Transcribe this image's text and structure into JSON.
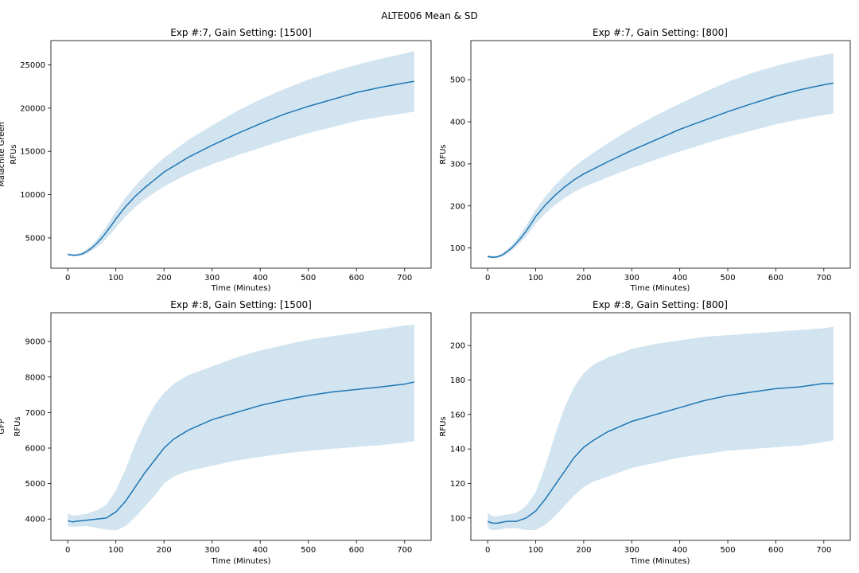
{
  "figure": {
    "suptitle": "ALTE006 Mean & SD",
    "colors": {
      "line": "#1f77b4",
      "band": "#1f77b4",
      "band_opacity": 0.2
    }
  },
  "chart_data": [
    {
      "type": "line",
      "title": "Exp #:7, Gain Setting: [1500]",
      "xlabel": "Time (Minutes)",
      "ylabel": "RFUs",
      "row_label": "Malachite Green",
      "xlim": [
        -35,
        755
      ],
      "ylim": [
        1500,
        27800
      ],
      "xticks": [
        0,
        100,
        200,
        300,
        400,
        500,
        600,
        700
      ],
      "yticks": [
        5000,
        10000,
        15000,
        20000,
        25000
      ],
      "series": [
        {
          "x": [
            0,
            10,
            20,
            30,
            40,
            50,
            60,
            70,
            80,
            90,
            100,
            120,
            140,
            160,
            180,
            200,
            250,
            300,
            350,
            400,
            450,
            500,
            550,
            600,
            650,
            700,
            720
          ],
          "mean": [
            3100,
            3000,
            3020,
            3150,
            3450,
            3850,
            4350,
            4950,
            5650,
            6400,
            7200,
            8600,
            9800,
            10800,
            11700,
            12600,
            14300,
            15700,
            17000,
            18200,
            19300,
            20200,
            21000,
            21800,
            22400,
            22900,
            23100
          ],
          "upper": [
            3250,
            3150,
            3180,
            3350,
            3700,
            4200,
            4800,
            5500,
            6300,
            7150,
            8050,
            9650,
            11000,
            12200,
            13250,
            14250,
            16300,
            18000,
            19600,
            21000,
            22200,
            23300,
            24200,
            25000,
            25700,
            26300,
            26600
          ],
          "lower": [
            2950,
            2870,
            2880,
            2970,
            3200,
            3500,
            3900,
            4350,
            4900,
            5500,
            6200,
            7450,
            8550,
            9450,
            10200,
            10950,
            12400,
            13500,
            14500,
            15400,
            16300,
            17100,
            17800,
            18500,
            19000,
            19400,
            19600
          ]
        }
      ]
    },
    {
      "type": "line",
      "title": "Exp #:7, Gain Setting: [800]",
      "xlabel": "Time (Minutes)",
      "ylabel": "RFUs",
      "xlim": [
        -35,
        755
      ],
      "ylim": [
        52,
        593
      ],
      "xticks": [
        0,
        100,
        200,
        300,
        400,
        500,
        600,
        700
      ],
      "yticks": [
        100,
        200,
        300,
        400,
        500
      ],
      "series": [
        {
          "x": [
            0,
            10,
            20,
            30,
            40,
            50,
            60,
            70,
            80,
            90,
            100,
            120,
            140,
            160,
            180,
            200,
            250,
            300,
            350,
            400,
            450,
            500,
            550,
            600,
            650,
            700,
            720
          ],
          "mean": [
            80,
            78,
            79,
            83,
            91,
            100,
            112,
            125,
            140,
            157,
            175,
            202,
            225,
            245,
            262,
            276,
            305,
            332,
            357,
            382,
            403,
            424,
            443,
            461,
            476,
            488,
            492
          ],
          "upper": [
            83,
            81,
            82,
            87,
            96,
            107,
            121,
            136,
            153,
            172,
            191,
            222,
            249,
            272,
            293,
            311,
            349,
            384,
            415,
            443,
            470,
            495,
            516,
            533,
            547,
            559,
            563
          ],
          "lower": [
            77,
            75,
            76,
            79,
            86,
            94,
            104,
            115,
            128,
            142,
            158,
            182,
            202,
            219,
            233,
            245,
            268,
            290,
            310,
            329,
            347,
            364,
            379,
            394,
            406,
            416,
            420
          ]
        }
      ]
    },
    {
      "type": "line",
      "title": "Exp #:8, Gain Setting: [1500]",
      "xlabel": "Time (Minutes)",
      "ylabel": "RFUs",
      "row_label": "GFP",
      "xlim": [
        -35,
        755
      ],
      "ylim": [
        3400,
        9810
      ],
      "xticks": [
        0,
        100,
        200,
        300,
        400,
        500,
        600,
        700
      ],
      "yticks": [
        4000,
        5000,
        6000,
        7000,
        8000,
        9000
      ],
      "series": [
        {
          "x": [
            0,
            10,
            20,
            40,
            60,
            80,
            100,
            120,
            140,
            160,
            180,
            200,
            220,
            250,
            300,
            350,
            400,
            450,
            500,
            550,
            600,
            650,
            700,
            720
          ],
          "mean": [
            3950,
            3920,
            3940,
            3970,
            4000,
            4030,
            4200,
            4500,
            4900,
            5300,
            5650,
            6000,
            6250,
            6500,
            6800,
            7000,
            7200,
            7350,
            7480,
            7580,
            7650,
            7720,
            7800,
            7860
          ],
          "upper": [
            4150,
            4100,
            4110,
            4150,
            4250,
            4400,
            4800,
            5400,
            6100,
            6700,
            7200,
            7550,
            7800,
            8050,
            8300,
            8550,
            8750,
            8900,
            9050,
            9150,
            9250,
            9350,
            9450,
            9470
          ],
          "lower": [
            3800,
            3780,
            3790,
            3800,
            3750,
            3700,
            3680,
            3800,
            4050,
            4350,
            4650,
            5000,
            5200,
            5350,
            5500,
            5650,
            5750,
            5850,
            5920,
            5980,
            6030,
            6080,
            6150,
            6200
          ]
        }
      ]
    },
    {
      "type": "line",
      "title": "Exp #:8, Gain Setting: [800]",
      "xlabel": "Time (Minutes)",
      "ylabel": "RFUs",
      "xlim": [
        -35,
        755
      ],
      "ylim": [
        87,
        219
      ],
      "xticks": [
        0,
        100,
        200,
        300,
        400,
        500,
        600,
        700
      ],
      "yticks": [
        100,
        120,
        140,
        160,
        180,
        200
      ],
      "series": [
        {
          "x": [
            0,
            10,
            20,
            40,
            60,
            80,
            100,
            120,
            140,
            160,
            180,
            200,
            220,
            250,
            300,
            350,
            400,
            450,
            500,
            550,
            600,
            650,
            700,
            720
          ],
          "mean": [
            98,
            97,
            97,
            98,
            98,
            100,
            104,
            111,
            119,
            127,
            135,
            141,
            145,
            150,
            156,
            160,
            164,
            168,
            171,
            173,
            175,
            176,
            178,
            178
          ],
          "upper": [
            103,
            101,
            101,
            102,
            103,
            107,
            115,
            130,
            148,
            164,
            176,
            184,
            189,
            193,
            198,
            201,
            203,
            205,
            206,
            207,
            208,
            209,
            210,
            211
          ],
          "lower": [
            94,
            93,
            93,
            94,
            94,
            93,
            93,
            96,
            101,
            107,
            113,
            118,
            121,
            124,
            129,
            132,
            135,
            137,
            139,
            140,
            141,
            142,
            144,
            145
          ]
        }
      ]
    }
  ]
}
